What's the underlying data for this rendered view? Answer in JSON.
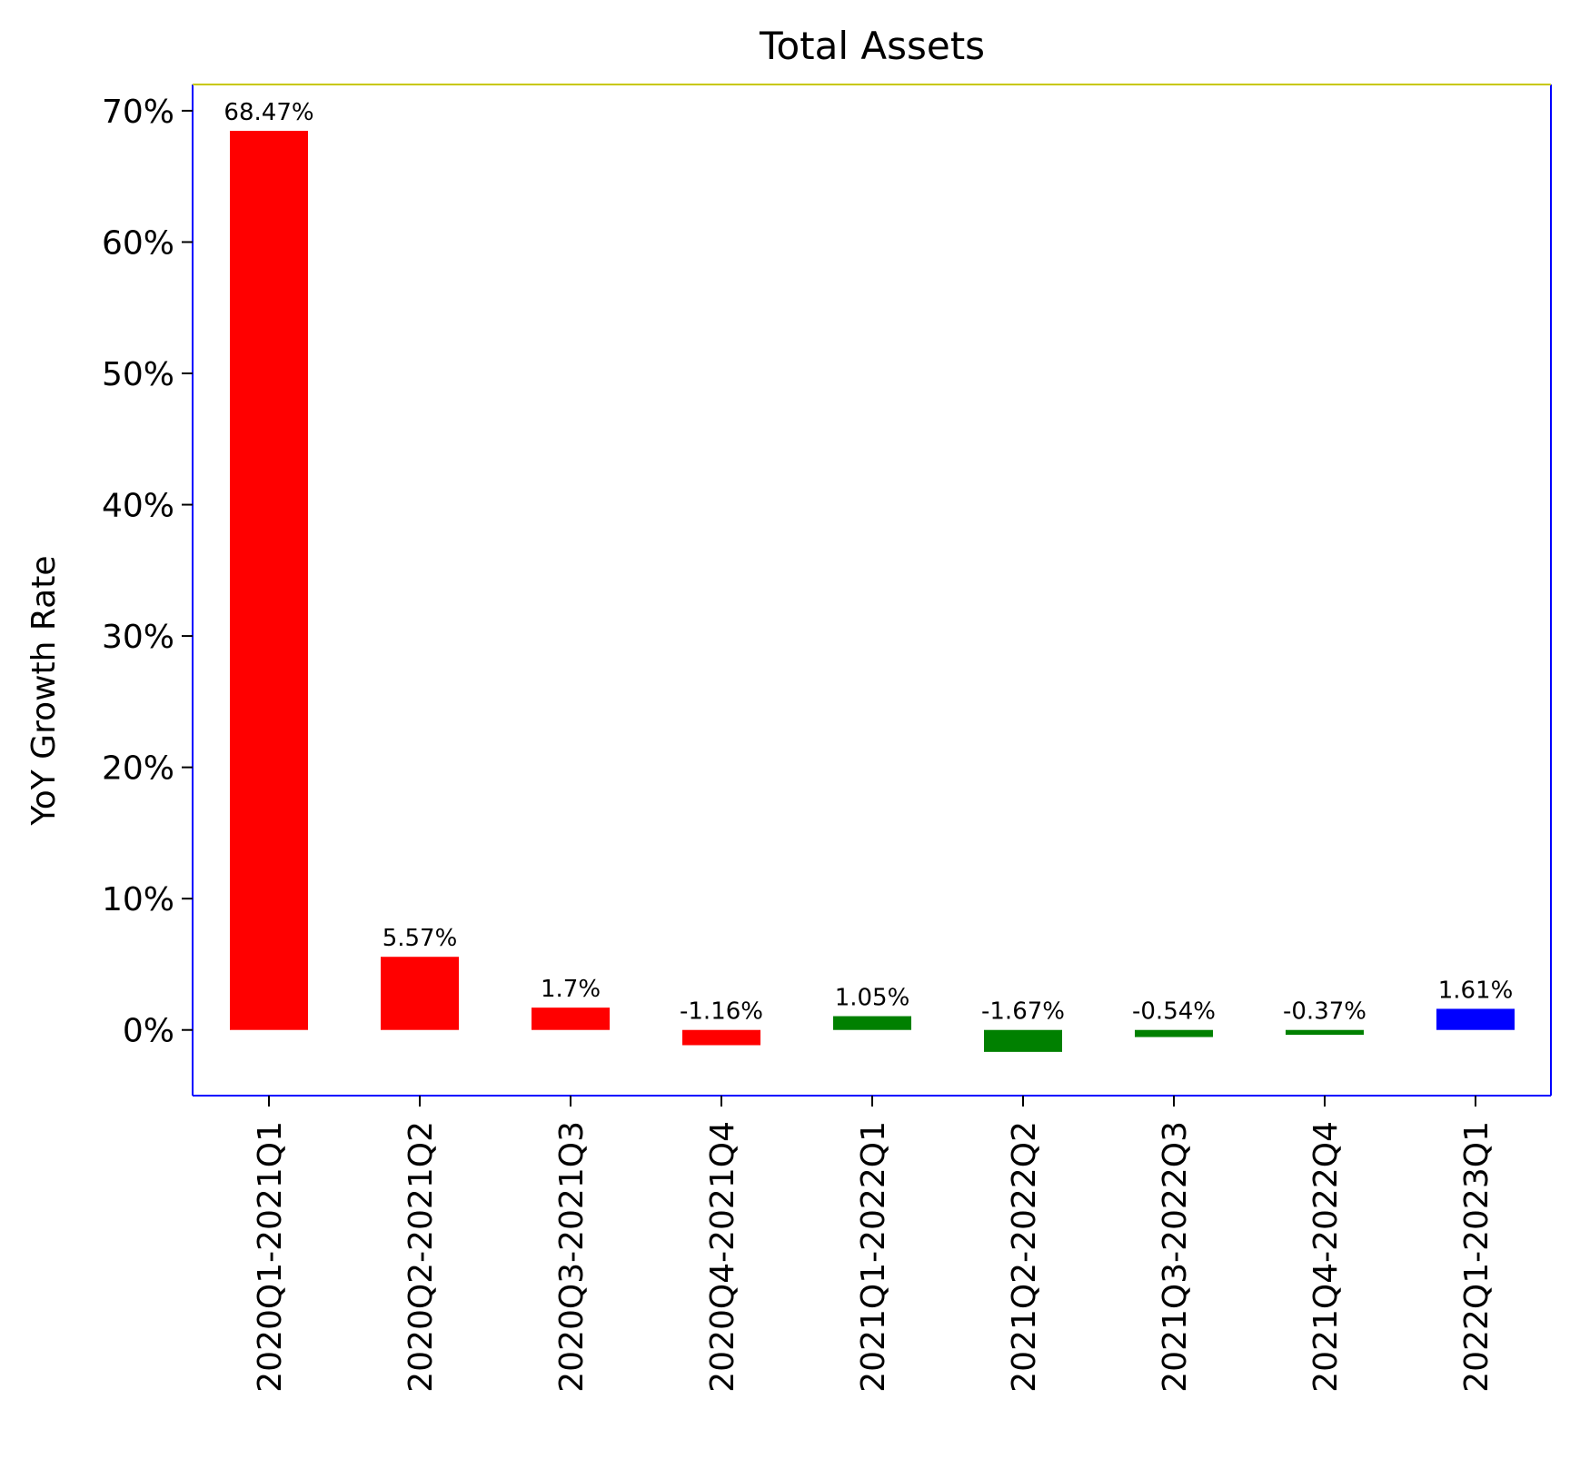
{
  "chart_data": {
    "type": "bar",
    "title": "Total Assets",
    "ylabel": "YoY Growth Rate",
    "xlabel": "",
    "categories": [
      "2020Q1-2021Q1",
      "2020Q2-2021Q2",
      "2020Q3-2021Q3",
      "2020Q4-2021Q4",
      "2021Q1-2022Q1",
      "2021Q2-2022Q2",
      "2021Q3-2022Q3",
      "2021Q4-2022Q4",
      "2022Q1-2023Q1"
    ],
    "values": [
      68.47,
      5.57,
      1.7,
      -1.16,
      1.05,
      -1.67,
      -0.54,
      -0.37,
      1.61
    ],
    "data_labels": [
      "68.47%",
      "5.57%",
      "1.7%",
      "-1.16%",
      "1.05%",
      "-1.67%",
      "-0.54%",
      "-0.37%",
      "1.61%"
    ],
    "bar_colors": [
      "#ff0000",
      "#ff0000",
      "#ff0000",
      "#ff0000",
      "#008000",
      "#008000",
      "#008000",
      "#008000",
      "#0000ff"
    ],
    "yticks": [
      0,
      10,
      20,
      30,
      40,
      50,
      60,
      70
    ],
    "ytick_labels": [
      "0%",
      "10%",
      "20%",
      "30%",
      "40%",
      "50%",
      "60%",
      "70%"
    ],
    "ylim": [
      -5,
      72
    ],
    "grid": false,
    "frame_color": "#0000ff",
    "top_spine_color": "#c8c800"
  }
}
